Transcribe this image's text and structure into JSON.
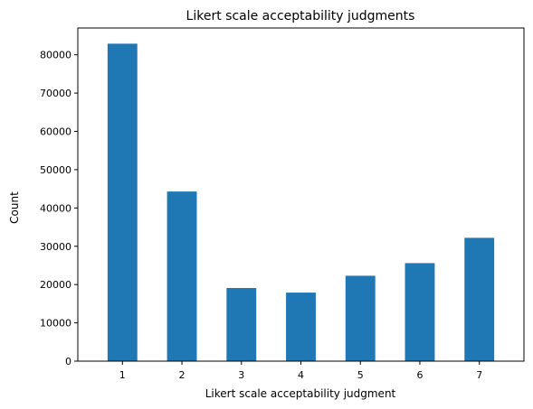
{
  "chart_data": {
    "type": "bar",
    "title": "Likert scale acceptability judgments",
    "xlabel": "Likert scale acceptability judgment",
    "ylabel": "Count",
    "categories": [
      "1",
      "2",
      "3",
      "4",
      "5",
      "6",
      "7"
    ],
    "values": [
      82900,
      44300,
      19100,
      17900,
      22300,
      25600,
      32200
    ],
    "ylim": [
      0,
      87000
    ],
    "yticks": [
      0,
      10000,
      20000,
      30000,
      40000,
      50000,
      60000,
      70000,
      80000
    ],
    "grid": false,
    "legend": "none",
    "bar_color": "#1f77b4"
  }
}
